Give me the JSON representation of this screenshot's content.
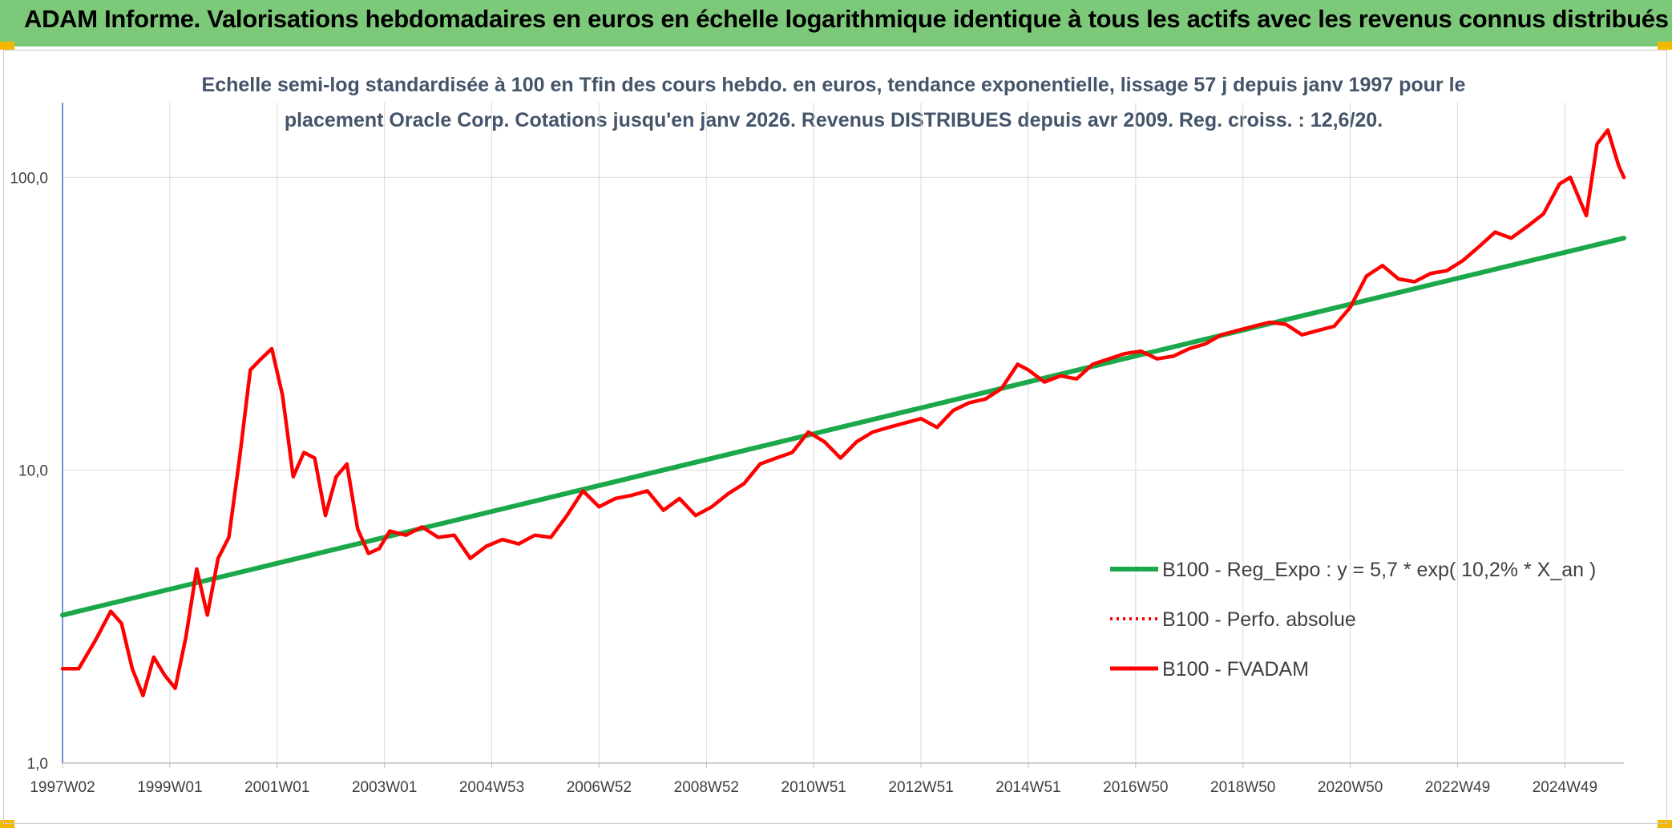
{
  "header": {
    "title": "ADAM Informe. Valorisations hebdomadaires en euros en échelle logarithmique identique à tous les actifs avec les revenus connus distribués"
  },
  "chart_data": {
    "type": "line",
    "title": "Echelle semi-log standardisée à 100 en Tfin des cours hebdo. en euros, tendance exponentielle, lissage 57 j depuis janv 1997 pour le placement Oracle Corp. Cotations jusqu'en janv 2026. Revenus DISTRIBUES depuis avr 2009. Reg. croiss. : 12,6/20.",
    "y_scale": "log",
    "ylim": [
      1,
      180
    ],
    "y_ticks": [
      1,
      10,
      100
    ],
    "y_tick_labels": [
      "1,0",
      "10,0",
      "100,0"
    ],
    "xlim": [
      1997.0,
      2026.1
    ],
    "x_ticks": [
      1997.0,
      1999.0,
      2001.0,
      2003.0,
      2005.0,
      2007.0,
      2009.0,
      2011.0,
      2013.0,
      2015.0,
      2017.0,
      2019.0,
      2021.0,
      2023.0,
      2025.0
    ],
    "x_tick_labels": [
      "1997W02",
      "1999W01",
      "2001W01",
      "2003W01",
      "2004W53",
      "2006W52",
      "2008W52",
      "2010W51",
      "2012W51",
      "2014W51",
      "2016W50",
      "2018W50",
      "2020W50",
      "2022W49",
      "2024W49"
    ],
    "grid": true,
    "legend_position": "bottom-right",
    "series": [
      {
        "name": "B100 - Reg_Expo : y = 5,7 * exp( 10,2% *  X_an )",
        "color": "#1aa84a",
        "style": "solid",
        "x": [
          1997.0,
          2026.1
        ],
        "values": [
          3.2,
          62
        ]
      },
      {
        "name": "B100 - Perfo. absolue",
        "color": "#ff0000",
        "style": "dotted",
        "x": [],
        "values": []
      },
      {
        "name": "B100 - FVADAM",
        "color": "#ff0000",
        "style": "solid",
        "x": [
          1997.0,
          1997.3,
          1997.6,
          1997.9,
          1998.1,
          1998.3,
          1998.5,
          1998.7,
          1998.9,
          1999.1,
          1999.3,
          1999.5,
          1999.7,
          1999.9,
          2000.1,
          2000.3,
          2000.5,
          2000.7,
          2000.9,
          2001.1,
          2001.3,
          2001.5,
          2001.7,
          2001.9,
          2002.1,
          2002.3,
          2002.5,
          2002.7,
          2002.9,
          2003.1,
          2003.4,
          2003.7,
          2004.0,
          2004.3,
          2004.6,
          2004.9,
          2005.2,
          2005.5,
          2005.8,
          2006.1,
          2006.4,
          2006.7,
          2007.0,
          2007.3,
          2007.6,
          2007.9,
          2008.2,
          2008.5,
          2008.8,
          2009.1,
          2009.4,
          2009.7,
          2010.0,
          2010.3,
          2010.6,
          2010.9,
          2011.2,
          2011.5,
          2011.8,
          2012.1,
          2012.4,
          2012.7,
          2013.0,
          2013.3,
          2013.6,
          2013.9,
          2014.2,
          2014.5,
          2014.8,
          2015.0,
          2015.3,
          2015.6,
          2015.9,
          2016.2,
          2016.5,
          2016.8,
          2017.1,
          2017.4,
          2017.7,
          2018.0,
          2018.3,
          2018.6,
          2018.9,
          2019.2,
          2019.5,
          2019.8,
          2020.1,
          2020.4,
          2020.7,
          2021.0,
          2021.3,
          2021.6,
          2021.9,
          2022.2,
          2022.5,
          2022.8,
          2023.1,
          2023.4,
          2023.7,
          2024.0,
          2024.3,
          2024.6,
          2024.9,
          2025.1,
          2025.4,
          2025.6,
          2025.8,
          2026.0,
          2026.1
        ],
        "values": [
          2.1,
          2.1,
          2.6,
          3.3,
          3.0,
          2.1,
          1.7,
          2.3,
          2.0,
          1.8,
          2.7,
          4.6,
          3.2,
          5.0,
          5.9,
          11.0,
          22.0,
          24.0,
          26.0,
          18.0,
          9.5,
          11.5,
          11.0,
          7.0,
          9.5,
          10.5,
          6.3,
          5.2,
          5.4,
          6.2,
          6.0,
          6.4,
          5.9,
          6.0,
          5.0,
          5.5,
          5.8,
          5.6,
          6.0,
          5.9,
          7.0,
          8.5,
          7.5,
          8.0,
          8.2,
          8.5,
          7.3,
          8.0,
          7.0,
          7.5,
          8.3,
          9.0,
          10.5,
          11.0,
          11.5,
          13.5,
          12.5,
          11.0,
          12.5,
          13.5,
          14.0,
          14.5,
          15.0,
          14.0,
          16.0,
          17.0,
          17.5,
          19.0,
          23.0,
          22.0,
          20.0,
          21.0,
          20.5,
          23.0,
          24.0,
          25.0,
          25.5,
          24.0,
          24.5,
          26.0,
          27.0,
          29.0,
          30.0,
          31.0,
          32.0,
          31.5,
          29.0,
          30.0,
          31.0,
          36.0,
          46.0,
          50.0,
          45.0,
          44.0,
          47.0,
          48.0,
          52.0,
          58.0,
          65.0,
          62.0,
          68.0,
          75.0,
          95.0,
          100.0,
          74.0,
          130.0,
          145.0,
          110.0,
          100.0
        ]
      }
    ]
  }
}
